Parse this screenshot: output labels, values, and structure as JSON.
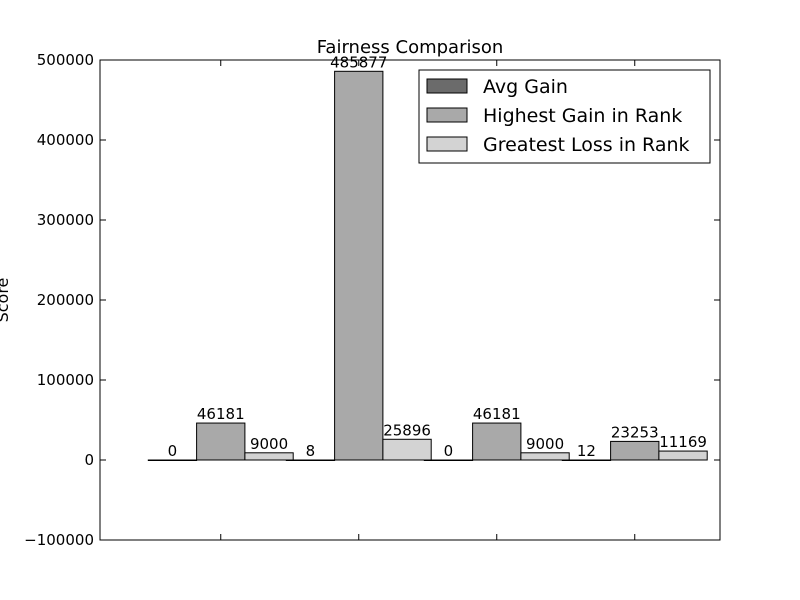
{
  "chart_data": {
    "type": "bar",
    "title": "Fairness Comparison",
    "xlabel": "",
    "ylabel": "Score",
    "ylim": [
      -100000,
      500000
    ],
    "yticks": [
      -100000,
      0,
      100000,
      200000,
      300000,
      400000,
      500000
    ],
    "grid": false,
    "legend_position": "top-right",
    "categories": [
      "",
      "",
      "",
      ""
    ],
    "series": [
      {
        "name": "Avg Gain",
        "color": "#6b6b6b",
        "values": [
          0,
          8,
          0,
          12
        ]
      },
      {
        "name": "Highest Gain in Rank",
        "color": "#a9a9a9",
        "values": [
          46181,
          485877,
          46181,
          23253
        ]
      },
      {
        "name": "Greatest Loss in Rank",
        "color": "#d3d3d3",
        "values": [
          9000,
          25896,
          9000,
          11169
        ]
      }
    ]
  }
}
